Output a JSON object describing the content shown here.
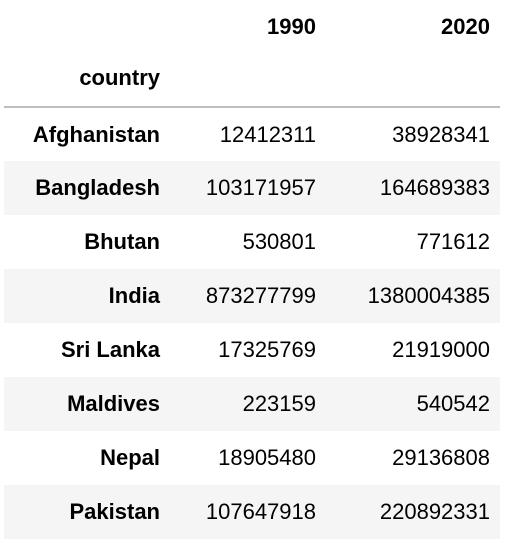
{
  "table": {
    "columns": [
      "1990",
      "2020"
    ],
    "index_name": "country",
    "rows": [
      {
        "country": "Afghanistan",
        "1990": "12412311",
        "2020": "38928341"
      },
      {
        "country": "Bangladesh",
        "1990": "103171957",
        "2020": "164689383"
      },
      {
        "country": "Bhutan",
        "1990": "530801",
        "2020": "771612"
      },
      {
        "country": "India",
        "1990": "873277799",
        "2020": "1380004385"
      },
      {
        "country": "Sri Lanka",
        "1990": "17325769",
        "2020": "21919000"
      },
      {
        "country": "Maldives",
        "1990": "223159",
        "2020": "540542"
      },
      {
        "country": "Nepal",
        "1990": "18905480",
        "2020": "29136808"
      },
      {
        "country": "Pakistan",
        "1990": "107647918",
        "2020": "220892331"
      }
    ]
  }
}
